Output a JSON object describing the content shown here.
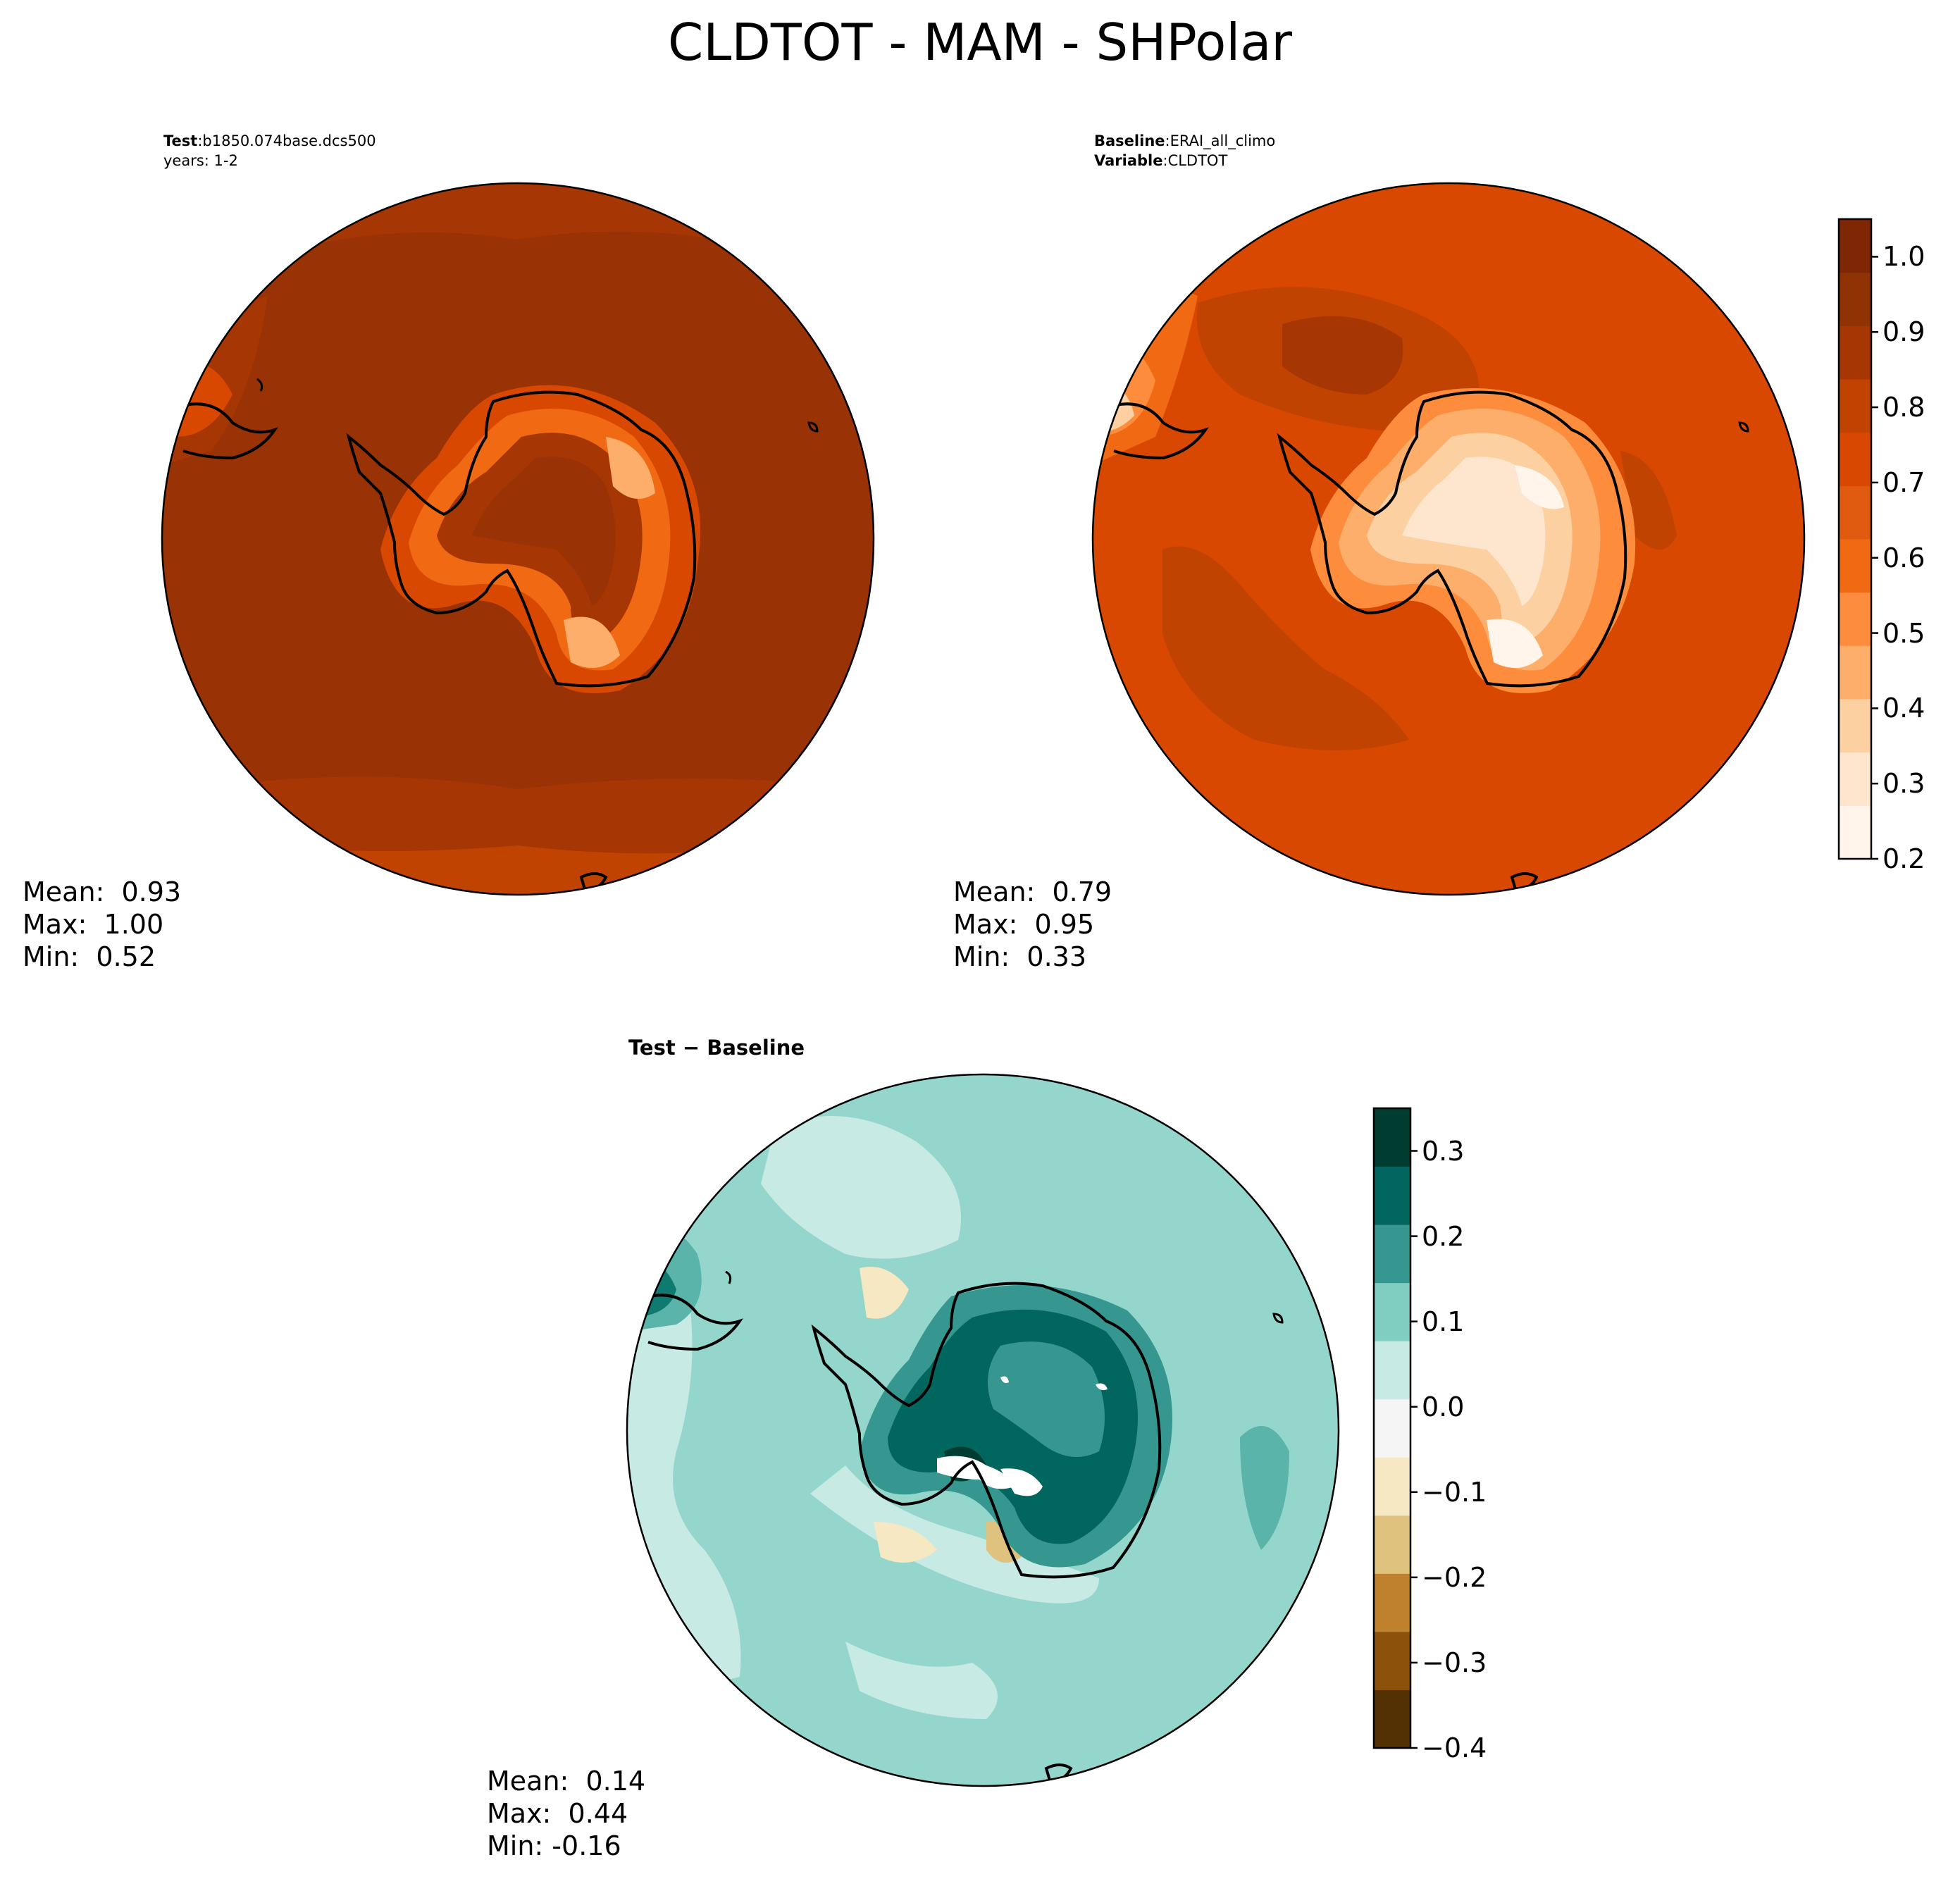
{
  "figure": {
    "title": "CLDTOT - MAM - SHPolar"
  },
  "panels": {
    "test": {
      "label_key": "Test",
      "label_value": "b1850.074base.dcs500",
      "sub": "years: 1-2",
      "stats": {
        "mean": "Mean:  0.93",
        "max": "Max:  1.00",
        "min": "Min:  0.52"
      }
    },
    "baseline": {
      "label_key": "Baseline",
      "label_value": "ERAI_all_climo",
      "var_key": "Variable",
      "var_value": "CLDTOT",
      "stats": {
        "mean": "Mean:  0.79",
        "max": "Max:  0.95",
        "min": "Min:  0.33"
      }
    },
    "diff": {
      "title": "Test − Baseline",
      "stats": {
        "mean": "Mean:  0.14",
        "max": "Max:  0.44",
        "min": "Min: -0.16"
      }
    }
  },
  "colors": {
    "orange_scale": [
      "#fff5eb",
      "#fee6ce",
      "#fdd0a2",
      "#fdae6b",
      "#fd8d3c",
      "#f16913",
      "#e05a0f",
      "#d94801",
      "#c04302",
      "#a63603",
      "#8f3204",
      "#7f2704"
    ],
    "brbg_scale": [
      "#543005",
      "#8c510a",
      "#bf812d",
      "#dfc27d",
      "#f6e8c3",
      "#f5f5f5",
      "#c7eae5",
      "#80cdc1",
      "#35978f",
      "#01665e",
      "#003c30"
    ],
    "test_ocean": "#993204",
    "baseline_ocean": "#d94801",
    "diff_ocean": "#94d6cc"
  },
  "chart_data": [
    {
      "type": "heatmap",
      "name": "Test",
      "projection": "south polar stereographic",
      "summary": {
        "mean": 0.93,
        "max": 1.0,
        "min": 0.52
      }
    },
    {
      "type": "heatmap",
      "name": "Baseline",
      "projection": "south polar stereographic",
      "summary": {
        "mean": 0.79,
        "max": 0.95,
        "min": 0.33
      },
      "colorbar": {
        "range": [
          0.2,
          1.05
        ],
        "ticks": [
          0.2,
          0.3,
          0.4,
          0.5,
          0.6,
          0.7,
          0.8,
          0.9,
          1.0
        ],
        "tick_labels": [
          "0.2",
          "0.3",
          "0.4",
          "0.5",
          "0.6",
          "0.7",
          "0.8",
          "0.9",
          "1.0"
        ]
      }
    },
    {
      "type": "heatmap",
      "name": "Test − Baseline",
      "projection": "south polar stereographic",
      "summary": {
        "mean": 0.14,
        "max": 0.44,
        "min": -0.16
      },
      "colorbar": {
        "range": [
          -0.4,
          0.35
        ],
        "ticks": [
          -0.4,
          -0.3,
          -0.2,
          -0.1,
          0.0,
          0.1,
          0.2,
          0.3
        ],
        "tick_labels": [
          "−0.4",
          "−0.3",
          "−0.2",
          "−0.1",
          "0.0",
          "0.1",
          "0.2",
          "0.3"
        ]
      }
    }
  ]
}
